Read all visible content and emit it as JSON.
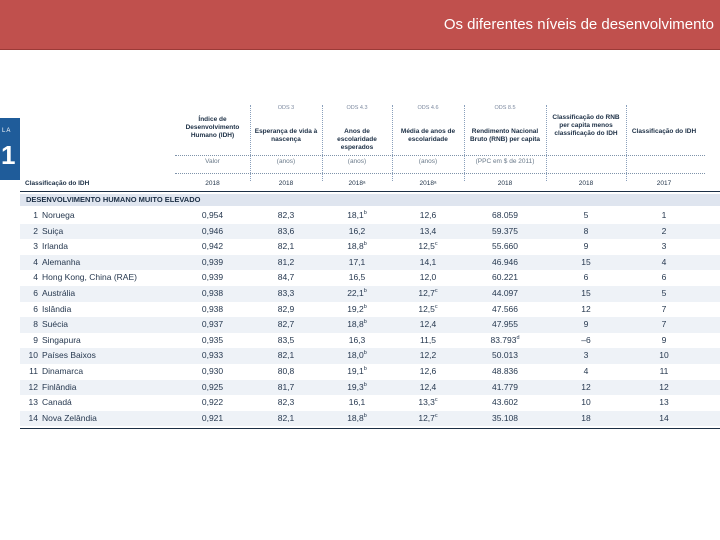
{
  "banner": {
    "title": "Os diferentes níveis de desenvolvimento"
  },
  "side_tab": {
    "small": "LA",
    "big": "1"
  },
  "table": {
    "sdg_codes": [
      "",
      "ODS 3",
      "ODS 4.3",
      "ODS 4.6",
      "ODS 8.5",
      "",
      ""
    ],
    "col_titles": [
      "Índice de Desenvolvimento Humano (IDH)",
      "Esperança de vida à nascença",
      "Anos de escolaridade esperados",
      "Média de anos de escolaridade",
      "Rendimento Nacional Bruto (RNB) per capita",
      "Classificação do RNB per capita menos classificação do IDH",
      "Classificação do IDH"
    ],
    "units": [
      "Valor",
      "(anos)",
      "(anos)",
      "(anos)",
      "(PPC em $ de 2011)",
      "",
      ""
    ],
    "rank_label": "Classificação do IDH",
    "years": [
      "2018",
      "2018",
      "2018ᵃ",
      "2018ᵃ",
      "2018",
      "2018",
      "2017"
    ],
    "group_label": "DESENVOLVIMENTO HUMANO MUITO ELEVADO",
    "rows": [
      {
        "rank": "1",
        "country": "Noruega",
        "idh": "0,954",
        "life": "82,3",
        "exp": "18,1",
        "exp_n": "b",
        "mean": "12,6",
        "mean_n": "",
        "gni": "68.059",
        "gni_n": "",
        "diff": "5",
        "rank2017": "1"
      },
      {
        "rank": "2",
        "country": "Suiça",
        "idh": "0,946",
        "life": "83,6",
        "exp": "16,2",
        "exp_n": "",
        "mean": "13,4",
        "mean_n": "",
        "gni": "59.375",
        "gni_n": "",
        "diff": "8",
        "rank2017": "2"
      },
      {
        "rank": "3",
        "country": "Irlanda",
        "idh": "0,942",
        "life": "82,1",
        "exp": "18,8",
        "exp_n": "b",
        "mean": "12,5",
        "mean_n": "c",
        "gni": "55.660",
        "gni_n": "",
        "diff": "9",
        "rank2017": "3"
      },
      {
        "rank": "4",
        "country": "Alemanha",
        "idh": "0,939",
        "life": "81,2",
        "exp": "17,1",
        "exp_n": "",
        "mean": "14,1",
        "mean_n": "",
        "gni": "46.946",
        "gni_n": "",
        "diff": "15",
        "rank2017": "4"
      },
      {
        "rank": "4",
        "country": "Hong Kong, China (RAE)",
        "idh": "0,939",
        "life": "84,7",
        "exp": "16,5",
        "exp_n": "",
        "mean": "12,0",
        "mean_n": "",
        "gni": "60.221",
        "gni_n": "",
        "diff": "6",
        "rank2017": "6"
      },
      {
        "rank": "6",
        "country": "Austrália",
        "idh": "0,938",
        "life": "83,3",
        "exp": "22,1",
        "exp_n": "b",
        "mean": "12,7",
        "mean_n": "c",
        "gni": "44.097",
        "gni_n": "",
        "diff": "15",
        "rank2017": "5"
      },
      {
        "rank": "6",
        "country": "Islândia",
        "idh": "0,938",
        "life": "82,9",
        "exp": "19,2",
        "exp_n": "b",
        "mean": "12,5",
        "mean_n": "c",
        "gni": "47.566",
        "gni_n": "",
        "diff": "12",
        "rank2017": "7"
      },
      {
        "rank": "8",
        "country": "Suécia",
        "idh": "0,937",
        "life": "82,7",
        "exp": "18,8",
        "exp_n": "b",
        "mean": "12,4",
        "mean_n": "",
        "gni": "47.955",
        "gni_n": "",
        "diff": "9",
        "rank2017": "7"
      },
      {
        "rank": "9",
        "country": "Singapura",
        "idh": "0,935",
        "life": "83,5",
        "exp": "16,3",
        "exp_n": "",
        "mean": "11,5",
        "mean_n": "",
        "gni": "83.793",
        "gni_n": "d",
        "diff": "–6",
        "rank2017": "9"
      },
      {
        "rank": "10",
        "country": "Países Baixos",
        "idh": "0,933",
        "life": "82,1",
        "exp": "18,0",
        "exp_n": "b",
        "mean": "12,2",
        "mean_n": "",
        "gni": "50.013",
        "gni_n": "",
        "diff": "3",
        "rank2017": "10"
      },
      {
        "rank": "11",
        "country": "Dinamarca",
        "idh": "0,930",
        "life": "80,8",
        "exp": "19,1",
        "exp_n": "b",
        "mean": "12,6",
        "mean_n": "",
        "gni": "48.836",
        "gni_n": "",
        "diff": "4",
        "rank2017": "11"
      },
      {
        "rank": "12",
        "country": "Finlândia",
        "idh": "0,925",
        "life": "81,7",
        "exp": "19,3",
        "exp_n": "b",
        "mean": "12,4",
        "mean_n": "",
        "gni": "41.779",
        "gni_n": "",
        "diff": "12",
        "rank2017": "12"
      },
      {
        "rank": "13",
        "country": "Canadá",
        "idh": "0,922",
        "life": "82,3",
        "exp": "16,1",
        "exp_n": "",
        "mean": "13,3",
        "mean_n": "c",
        "gni": "43.602",
        "gni_n": "",
        "diff": "10",
        "rank2017": "13"
      },
      {
        "rank": "14",
        "country": "Nova Zelândia",
        "idh": "0,921",
        "life": "82,1",
        "exp": "18,8",
        "exp_n": "b",
        "mean": "12,7",
        "mean_n": "c",
        "gni": "35.108",
        "gni_n": "",
        "diff": "18",
        "rank2017": "14"
      }
    ]
  }
}
